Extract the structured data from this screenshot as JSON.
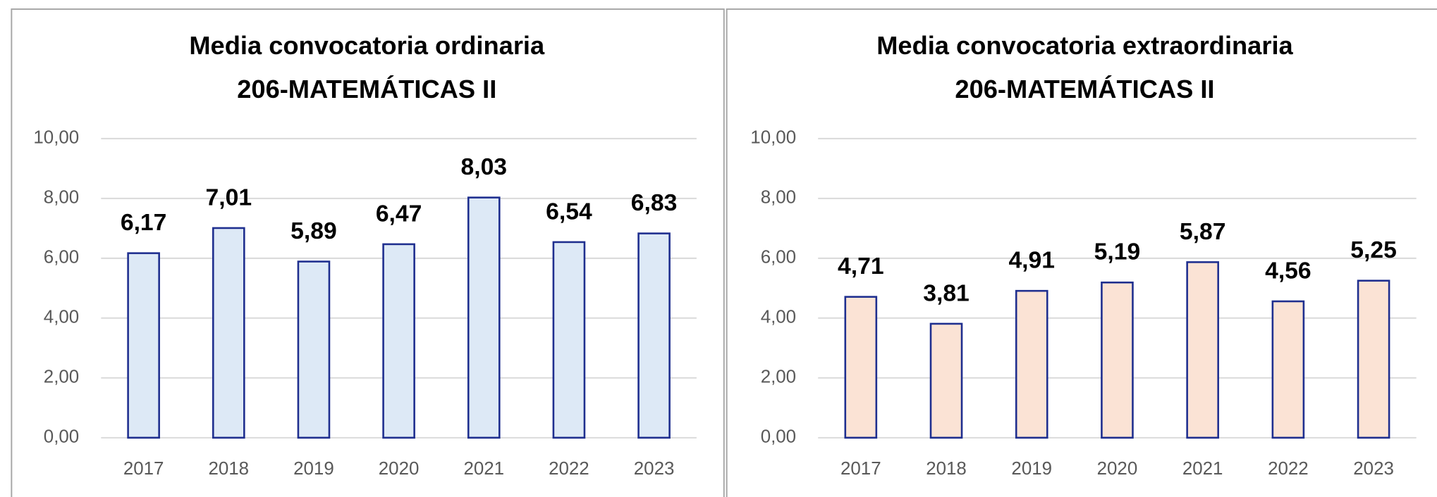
{
  "chart_data": [
    {
      "type": "bar",
      "title": "Media convocatoria ordinaria",
      "subtitle": "206-MATEMÁTICAS II",
      "categories": [
        "2017",
        "2018",
        "2019",
        "2020",
        "2021",
        "2022",
        "2023"
      ],
      "values": [
        6.17,
        7.01,
        5.89,
        6.47,
        8.03,
        6.54,
        6.83
      ],
      "value_labels": [
        "6,17",
        "7,01",
        "5,89",
        "6,47",
        "8,03",
        "6,54",
        "6,83"
      ],
      "color": "#dde9f6",
      "edge_color": "#1f2f8f",
      "ylim": [
        0,
        10
      ],
      "yticks": [
        {
          "value": 0,
          "label": "0,00"
        },
        {
          "value": 2,
          "label": "2,00"
        },
        {
          "value": 4,
          "label": "4,00"
        },
        {
          "value": 6,
          "label": "6,00"
        },
        {
          "value": 8,
          "label": "8,00"
        },
        {
          "value": 10,
          "label": "10,00"
        }
      ],
      "grid": true
    },
    {
      "type": "bar",
      "title": "Media convocatoria extraordinaria",
      "subtitle": "206-MATEMÁTICAS II",
      "categories": [
        "2017",
        "2018",
        "2019",
        "2020",
        "2021",
        "2022",
        "2023"
      ],
      "values": [
        4.71,
        3.81,
        4.91,
        5.19,
        5.87,
        4.56,
        5.25
      ],
      "value_labels": [
        "4,71",
        "3,81",
        "4,91",
        "5,19",
        "5,87",
        "4,56",
        "5,25"
      ],
      "color": "#fbe3d5",
      "edge_color": "#1f2f8f",
      "ylim": [
        0,
        10
      ],
      "yticks": [
        {
          "value": 0,
          "label": "0,00"
        },
        {
          "value": 2,
          "label": "2,00"
        },
        {
          "value": 4,
          "label": "4,00"
        },
        {
          "value": 6,
          "label": "6,00"
        },
        {
          "value": 8,
          "label": "8,00"
        },
        {
          "value": 10,
          "label": "10,00"
        }
      ],
      "grid": true
    }
  ]
}
